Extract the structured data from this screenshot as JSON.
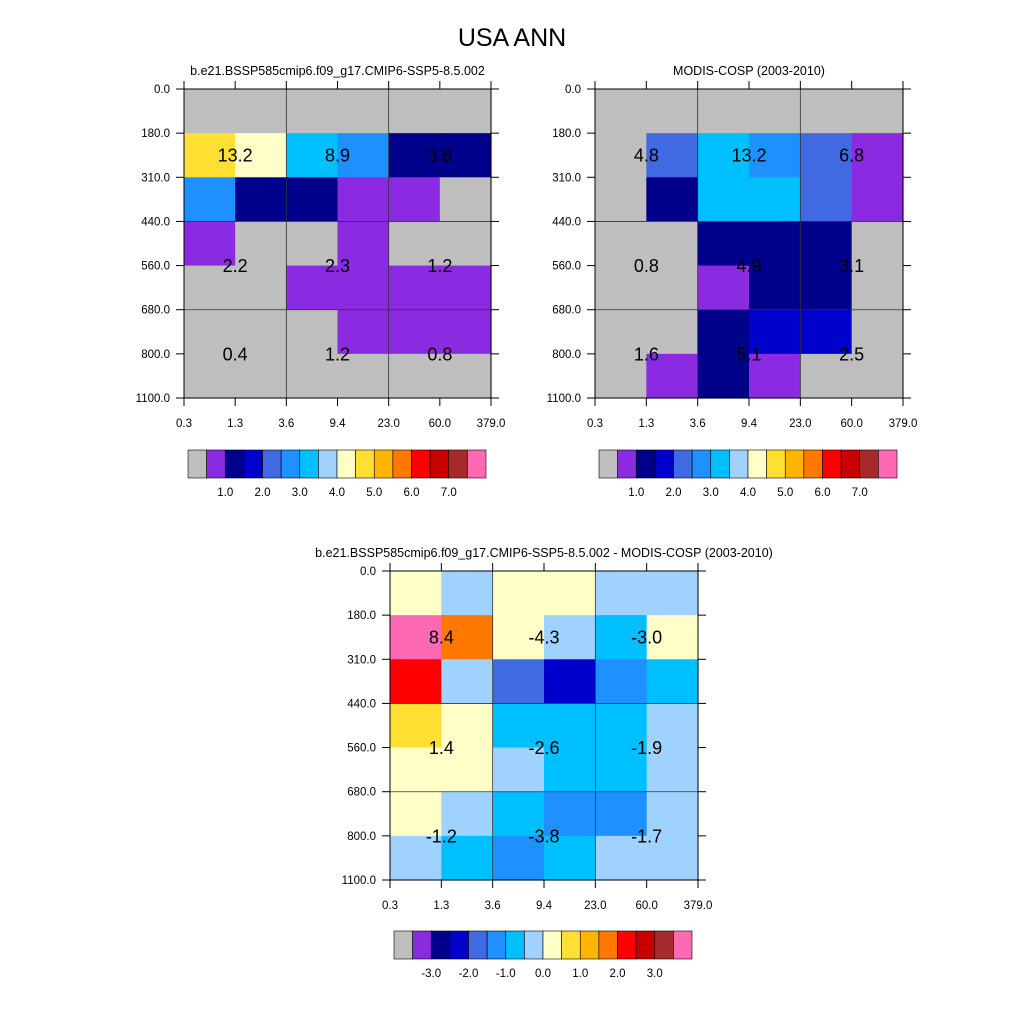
{
  "figure": {
    "title": "USA ANN"
  },
  "chart_data": [
    {
      "type": "heatmap",
      "title": "b.e21.BSSP585cmip6.f09_g17.CMIP6-SSP5-8.5.002",
      "x_ticks": [
        "0.3",
        "1.3",
        "3.6",
        "9.4",
        "23.0",
        "60.0",
        "379.0"
      ],
      "y_ticks": [
        "0.0",
        "180.0",
        "310.0",
        "440.0",
        "560.0",
        "680.0",
        "800.0",
        "1100.0"
      ],
      "colorbar": {
        "colors": [
          "#bebebe",
          "#8a2be2",
          "#00008b",
          "#0000cd",
          "#4169e1",
          "#1e90ff",
          "#00bfff",
          "#a0d2ff",
          "#ffffc8",
          "#ffe032",
          "#ffb400",
          "#ff7800",
          "#ff0000",
          "#c80000",
          "#a52a2a",
          "#ff69b4"
        ],
        "labels": [
          "1.0",
          "2.0",
          "3.0",
          "4.0",
          "5.0",
          "6.0",
          "7.0"
        ],
        "label_start_boundary": 2
      },
      "cell_colors": [
        [
          "#bebebe",
          "#bebebe",
          "#bebebe",
          "#bebebe",
          "#bebebe",
          "#bebebe"
        ],
        [
          "#ffe032",
          "#ffffc8",
          "#00bfff",
          "#1e90ff",
          "#00008b",
          "#00008b"
        ],
        [
          "#1e90ff",
          "#00008b",
          "#00008b",
          "#8a2be2",
          "#8a2be2",
          "#bebebe"
        ],
        [
          "#8a2be2",
          "#bebebe",
          "#bebebe",
          "#8a2be2",
          "#bebebe",
          "#bebebe"
        ],
        [
          "#bebebe",
          "#bebebe",
          "#8a2be2",
          "#8a2be2",
          "#8a2be2",
          "#8a2be2"
        ],
        [
          "#bebebe",
          "#bebebe",
          "#bebebe",
          "#8a2be2",
          "#8a2be2",
          "#8a2be2"
        ],
        [
          "#bebebe",
          "#bebebe",
          "#bebebe",
          "#bebebe",
          "#bebebe",
          "#bebebe"
        ]
      ],
      "block_values": [
        [
          "13.2",
          "8.9",
          "3.8"
        ],
        [
          "2.2",
          "2.3",
          "1.2"
        ],
        [
          "0.4",
          "1.2",
          "0.8"
        ]
      ]
    },
    {
      "type": "heatmap",
      "title": "MODIS-COSP (2003-2010)",
      "x_ticks": [
        "0.3",
        "1.3",
        "3.6",
        "9.4",
        "23.0",
        "60.0",
        "379.0"
      ],
      "y_ticks": [
        "0.0",
        "180.0",
        "310.0",
        "440.0",
        "560.0",
        "680.0",
        "800.0",
        "1100.0"
      ],
      "colorbar": {
        "colors": [
          "#bebebe",
          "#8a2be2",
          "#00008b",
          "#0000cd",
          "#4169e1",
          "#1e90ff",
          "#00bfff",
          "#a0d2ff",
          "#ffffc8",
          "#ffe032",
          "#ffb400",
          "#ff7800",
          "#ff0000",
          "#c80000",
          "#a52a2a",
          "#ff69b4"
        ],
        "labels": [
          "1.0",
          "2.0",
          "3.0",
          "4.0",
          "5.0",
          "6.0",
          "7.0"
        ],
        "label_start_boundary": 2
      },
      "cell_colors": [
        [
          "#bebebe",
          "#bebebe",
          "#bebebe",
          "#bebebe",
          "#bebebe",
          "#bebebe"
        ],
        [
          "#bebebe",
          "#4169e1",
          "#00bfff",
          "#1e90ff",
          "#4169e1",
          "#8a2be2"
        ],
        [
          "#bebebe",
          "#00008b",
          "#00bfff",
          "#00bfff",
          "#4169e1",
          "#8a2be2"
        ],
        [
          "#bebebe",
          "#bebebe",
          "#00008b",
          "#00008b",
          "#00008b",
          "#bebebe"
        ],
        [
          "#bebebe",
          "#bebebe",
          "#8a2be2",
          "#00008b",
          "#00008b",
          "#bebebe"
        ],
        [
          "#bebebe",
          "#bebebe",
          "#00008b",
          "#0000cd",
          "#0000cd",
          "#bebebe"
        ],
        [
          "#bebebe",
          "#8a2be2",
          "#00008b",
          "#8a2be2",
          "#bebebe",
          "#bebebe"
        ]
      ],
      "block_values": [
        [
          "4.8",
          "13.2",
          "6.8"
        ],
        [
          "0.8",
          "4.9",
          "3.1"
        ],
        [
          "1.6",
          "5.1",
          "2.5"
        ]
      ]
    },
    {
      "type": "heatmap",
      "title": "b.e21.BSSP585cmip6.f09_g17.CMIP6-SSP5-8.5.002 - MODIS-COSP (2003-2010)",
      "x_ticks": [
        "0.3",
        "1.3",
        "3.6",
        "9.4",
        "23.0",
        "60.0",
        "379.0"
      ],
      "y_ticks": [
        "0.0",
        "180.0",
        "310.0",
        "440.0",
        "560.0",
        "680.0",
        "800.0",
        "1100.0"
      ],
      "colorbar": {
        "colors": [
          "#bebebe",
          "#8a2be2",
          "#00008b",
          "#0000cd",
          "#4169e1",
          "#1e90ff",
          "#00bfff",
          "#a0d2ff",
          "#ffffc8",
          "#ffe032",
          "#ffb400",
          "#ff7800",
          "#ff0000",
          "#c80000",
          "#a52a2a",
          "#ff69b4"
        ],
        "labels": [
          "-3.0",
          "-2.0",
          "-1.0",
          "0.0",
          "1.0",
          "2.0",
          "3.0"
        ],
        "label_start_boundary": 2
      },
      "cell_colors": [
        [
          "#ffffc8",
          "#a0d2ff",
          "#ffffc8",
          "#ffffc8",
          "#a0d2ff",
          "#a0d2ff"
        ],
        [
          "#ff69b4",
          "#ff7800",
          "#ffffc8",
          "#a0d2ff",
          "#00bfff",
          "#ffffc8"
        ],
        [
          "#ff0000",
          "#a0d2ff",
          "#4169e1",
          "#0000cd",
          "#1e90ff",
          "#00bfff"
        ],
        [
          "#ffe032",
          "#ffffc8",
          "#00bfff",
          "#00bfff",
          "#00bfff",
          "#a0d2ff"
        ],
        [
          "#ffffc8",
          "#ffffc8",
          "#a0d2ff",
          "#00bfff",
          "#00bfff",
          "#a0d2ff"
        ],
        [
          "#ffffc8",
          "#a0d2ff",
          "#00bfff",
          "#1e90ff",
          "#1e90ff",
          "#a0d2ff"
        ],
        [
          "#a0d2ff",
          "#00bfff",
          "#1e90ff",
          "#00bfff",
          "#a0d2ff",
          "#a0d2ff"
        ]
      ],
      "block_values": [
        [
          "8.4",
          "-4.3",
          "-3.0"
        ],
        [
          "1.4",
          "-2.6",
          "-1.9"
        ],
        [
          "-1.2",
          "-3.8",
          "-1.7"
        ]
      ]
    }
  ]
}
